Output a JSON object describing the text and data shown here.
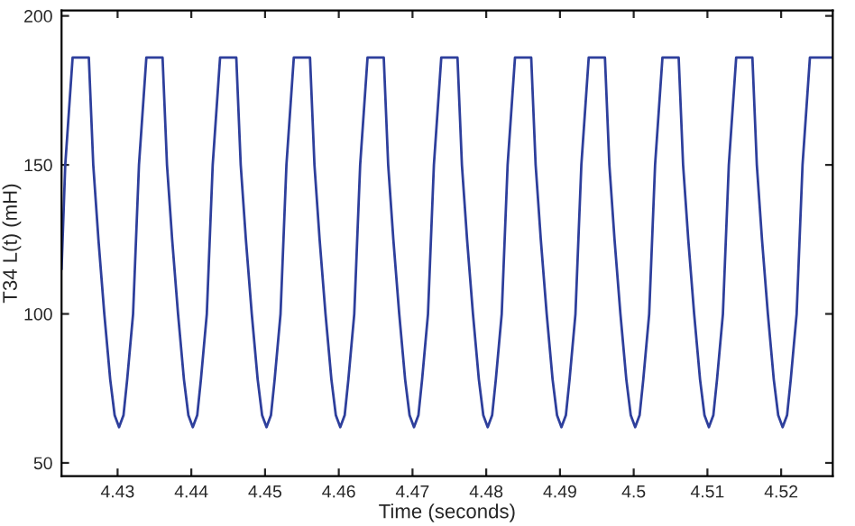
{
  "chart_data": {
    "type": "line",
    "xlabel": "Time (seconds)",
    "ylabel": "T34 L(t) (mH)",
    "xlim": [
      4.4224,
      4.527
    ],
    "ylim": [
      45.6,
      201.8
    ],
    "xticks": [
      4.43,
      4.44,
      4.45,
      4.46,
      4.47,
      4.48,
      4.49,
      4.5,
      4.51,
      4.52
    ],
    "yticks": [
      50,
      100,
      150,
      200
    ],
    "grid": false,
    "marker": "none",
    "line_style": "solid",
    "series": [
      {
        "color": "#2e3f9c",
        "x": [
          4.4224,
          4.4229,
          4.4239,
          4.4261,
          4.4267,
          4.4274,
          4.4282,
          4.429,
          4.4296,
          4.4302,
          4.4308,
          4.4313,
          4.4321,
          4.4325,
          4.4329,
          4.4339,
          4.4361,
          4.4367,
          4.4374,
          4.4382,
          4.439,
          4.4396,
          4.4402,
          4.4408,
          4.4413,
          4.4421,
          4.4425,
          4.4429,
          4.4439,
          4.4461,
          4.4467,
          4.4474,
          4.4482,
          4.449,
          4.4496,
          4.4502,
          4.4508,
          4.4513,
          4.4521,
          4.4525,
          4.4529,
          4.4539,
          4.4561,
          4.4567,
          4.4574,
          4.4582,
          4.459,
          4.4596,
          4.4602,
          4.4608,
          4.4613,
          4.4621,
          4.4625,
          4.4629,
          4.4639,
          4.4661,
          4.4667,
          4.4674,
          4.4682,
          4.469,
          4.4696,
          4.4702,
          4.4708,
          4.4713,
          4.4721,
          4.4725,
          4.4729,
          4.4739,
          4.4761,
          4.4767,
          4.4774,
          4.4782,
          4.479,
          4.4796,
          4.4802,
          4.4808,
          4.4813,
          4.4821,
          4.4825,
          4.4829,
          4.4839,
          4.4861,
          4.4867,
          4.4874,
          4.4882,
          4.489,
          4.4896,
          4.4902,
          4.4908,
          4.4913,
          4.4921,
          4.4925,
          4.4929,
          4.4939,
          4.4961,
          4.4967,
          4.4974,
          4.4982,
          4.499,
          4.4996,
          4.5002,
          4.5008,
          4.5013,
          4.5021,
          4.5025,
          4.5029,
          4.5039,
          4.5061,
          4.5067,
          4.5074,
          4.5082,
          4.509,
          4.5096,
          4.5102,
          4.5108,
          4.5113,
          4.5121,
          4.5125,
          4.5129,
          4.5139,
          4.5161,
          4.5167,
          4.5174,
          4.5182,
          4.519,
          4.5196,
          4.5202,
          4.5208,
          4.5213,
          4.5221,
          4.5225,
          4.5229,
          4.5239,
          4.527
        ],
        "values": [
          115,
          150,
          186,
          186,
          150,
          125,
          100,
          78,
          66,
          62,
          66,
          78,
          100,
          125,
          150,
          186,
          186,
          150,
          125,
          100,
          78,
          66,
          62,
          66,
          78,
          100,
          125,
          150,
          186,
          186,
          150,
          125,
          100,
          78,
          66,
          62,
          66,
          78,
          100,
          125,
          150,
          186,
          186,
          150,
          125,
          100,
          78,
          66,
          62,
          66,
          78,
          100,
          125,
          150,
          186,
          186,
          150,
          125,
          100,
          78,
          66,
          62,
          66,
          78,
          100,
          125,
          150,
          186,
          186,
          150,
          125,
          100,
          78,
          66,
          62,
          66,
          78,
          100,
          125,
          150,
          186,
          186,
          150,
          125,
          100,
          78,
          66,
          62,
          66,
          78,
          100,
          125,
          150,
          186,
          186,
          150,
          125,
          100,
          78,
          66,
          62,
          66,
          78,
          100,
          125,
          150,
          186,
          186,
          150,
          125,
          100,
          78,
          66,
          62,
          66,
          78,
          100,
          125,
          150,
          186,
          186,
          150,
          125,
          100,
          78,
          66,
          62,
          66,
          78,
          100,
          125,
          150,
          186,
          186
        ]
      }
    ]
  }
}
